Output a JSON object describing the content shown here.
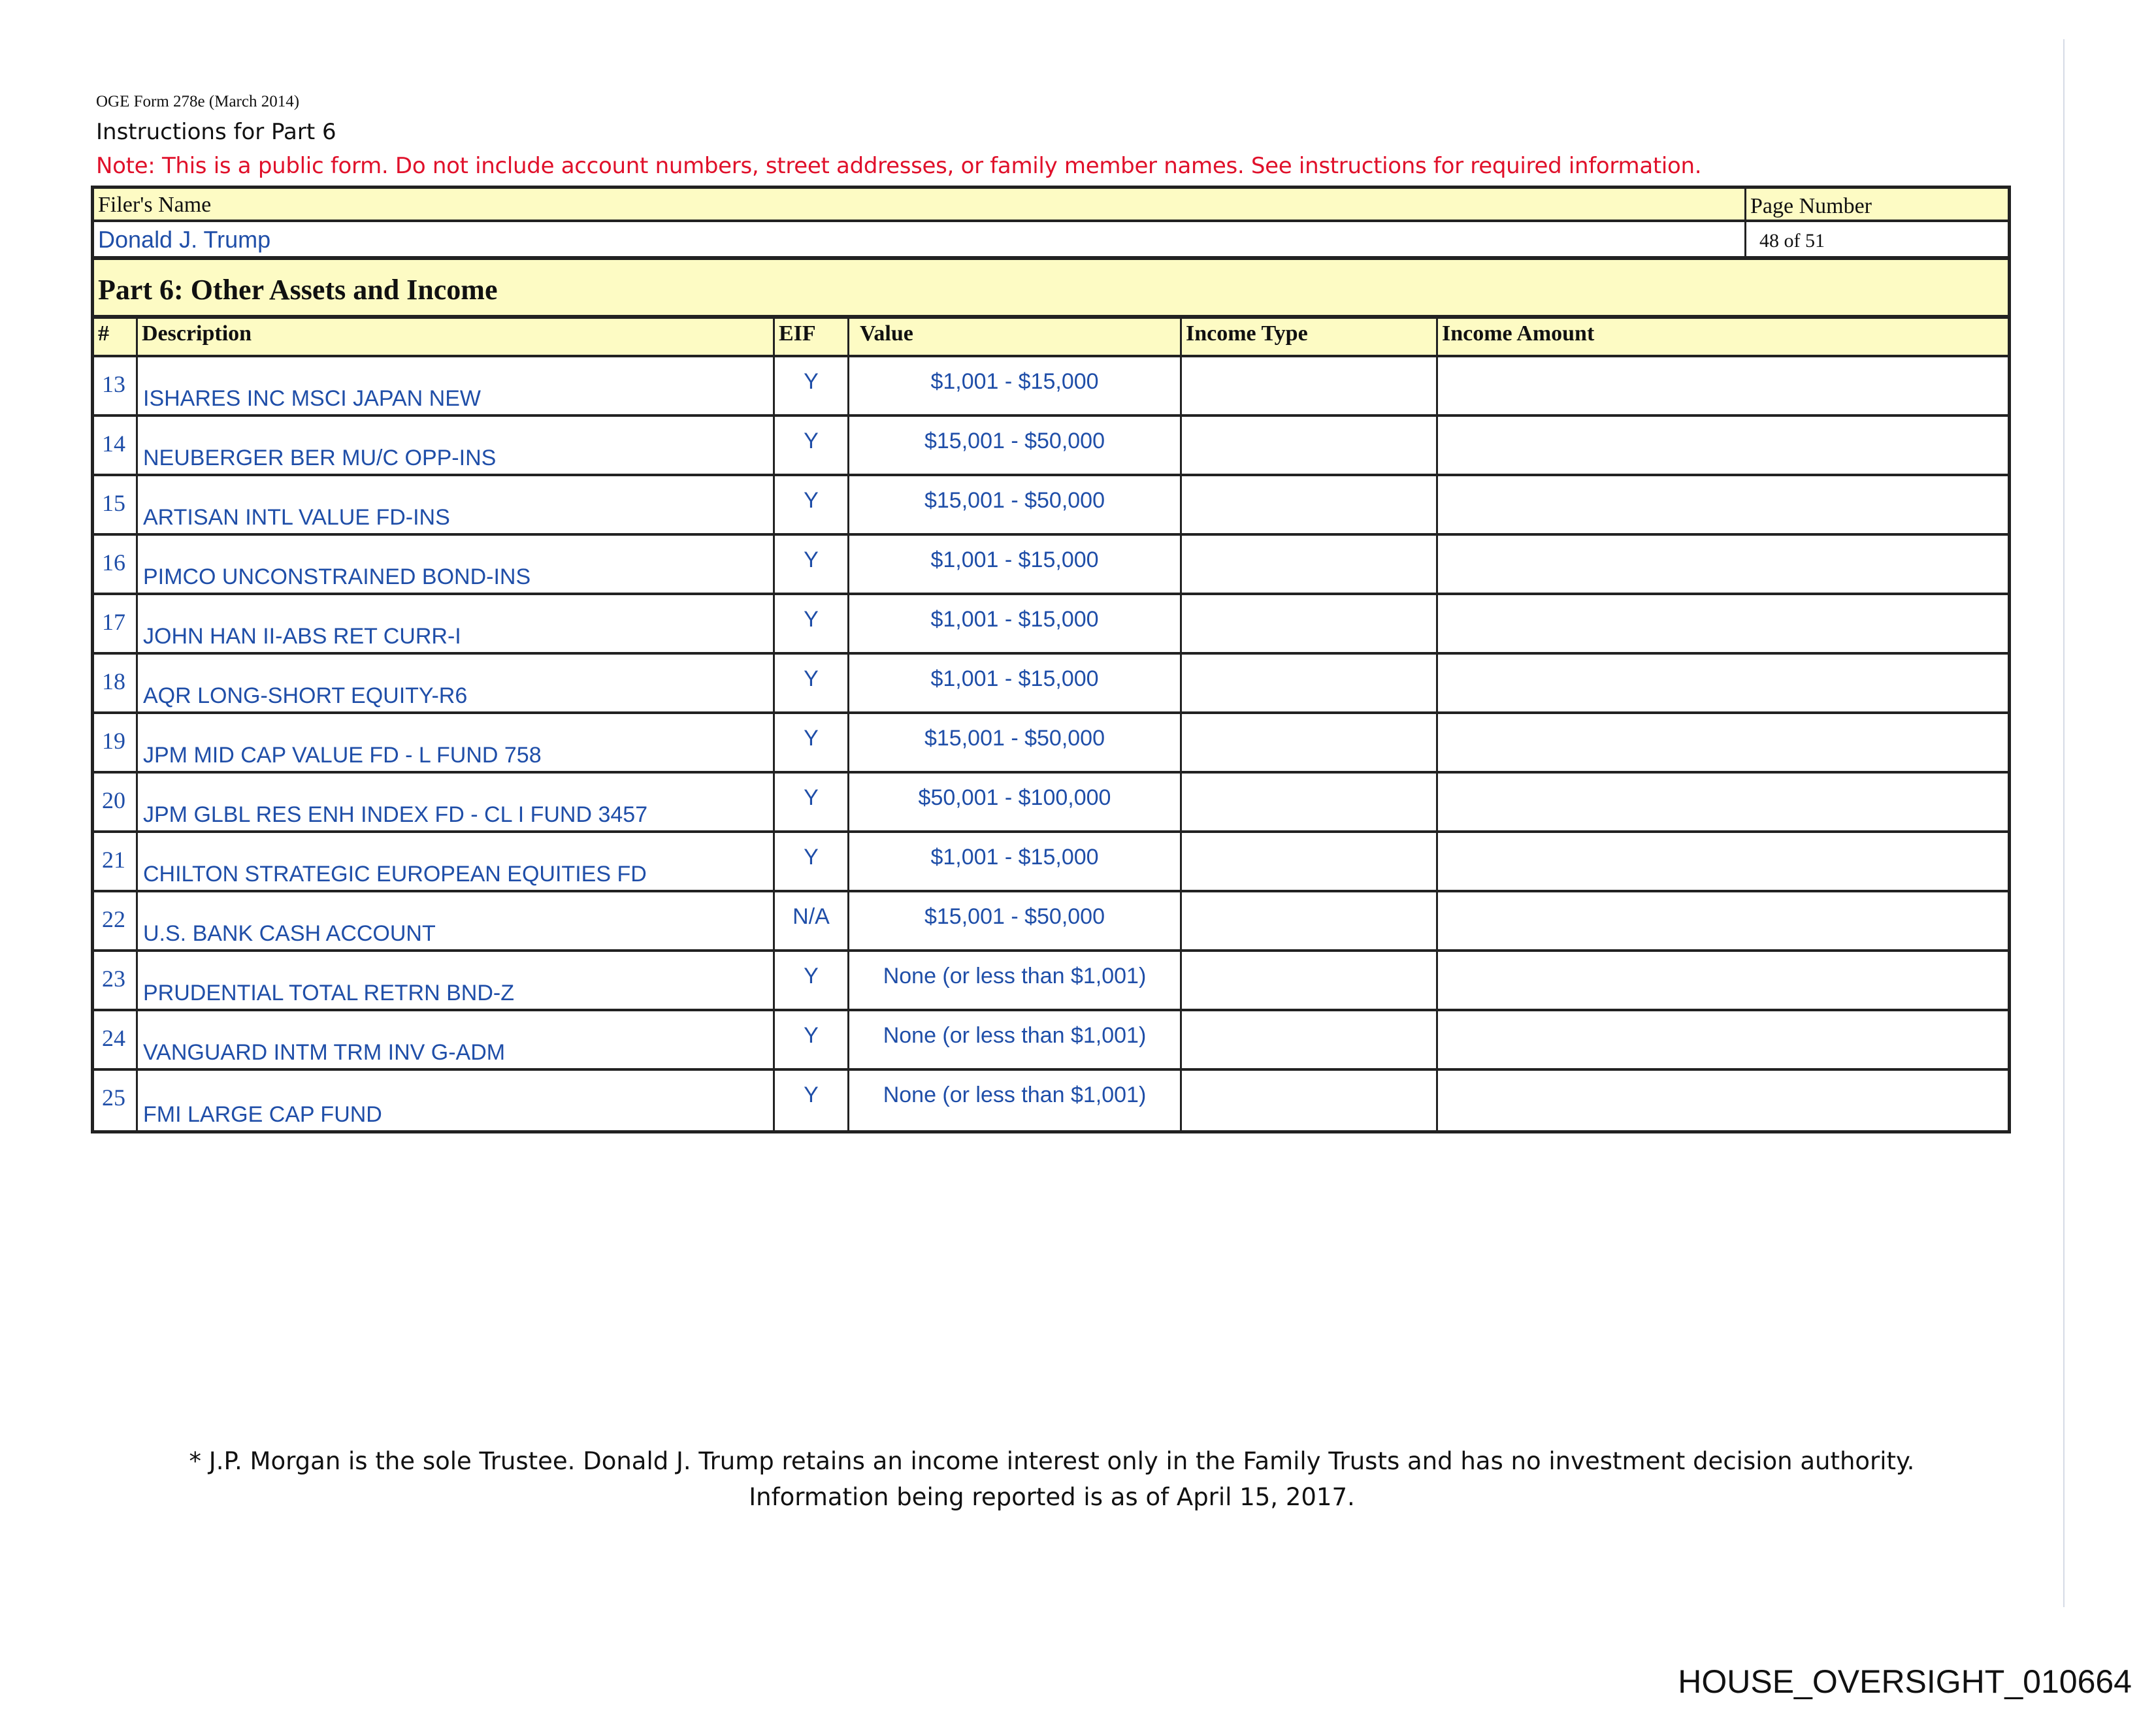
{
  "header": {
    "form_id": "OGE Form 278e (March 2014)",
    "instructions": "Instructions for Part 6",
    "note": "Note: This is a public form. Do not include account numbers, street addresses, or family member names.  See instructions for required information."
  },
  "filer": {
    "name_label": "Filer's Name",
    "name": "Donald J. Trump",
    "page_label": "Page Number",
    "page": "48 of 51"
  },
  "part": {
    "title": "Part 6: Other Assets and Income",
    "columns": [
      "#",
      "Description",
      "EIF",
      "Value",
      "Income Type",
      "Income Amount"
    ],
    "rows": [
      {
        "num": "13",
        "description": "ISHARES INC MSCI JAPAN NEW",
        "eif": "Y",
        "value": "$1,001 - $15,000",
        "income_type": "",
        "income_amount": ""
      },
      {
        "num": "14",
        "description": "NEUBERGER BER MU/C OPP-INS",
        "eif": "Y",
        "value": "$15,001 - $50,000",
        "income_type": "",
        "income_amount": ""
      },
      {
        "num": "15",
        "description": "ARTISAN INTL VALUE FD-INS",
        "eif": "Y",
        "value": "$15,001 - $50,000",
        "income_type": "",
        "income_amount": ""
      },
      {
        "num": "16",
        "description": "PIMCO UNCONSTRAINED BOND-INS",
        "eif": "Y",
        "value": "$1,001 - $15,000",
        "income_type": "",
        "income_amount": ""
      },
      {
        "num": "17",
        "description": "JOHN HAN II-ABS RET CURR-I",
        "eif": "Y",
        "value": "$1,001 - $15,000",
        "income_type": "",
        "income_amount": ""
      },
      {
        "num": "18",
        "description": "AQR LONG-SHORT EQUITY-R6",
        "eif": "Y",
        "value": "$1,001 - $15,000",
        "income_type": "",
        "income_amount": ""
      },
      {
        "num": "19",
        "description": "JPM MID CAP VALUE FD - L FUND 758",
        "eif": "Y",
        "value": "$15,001 - $50,000",
        "income_type": "",
        "income_amount": ""
      },
      {
        "num": "20",
        "description": "JPM GLBL RES ENH INDEX FD - CL I FUND 3457",
        "eif": "Y",
        "value": "$50,001 - $100,000",
        "income_type": "",
        "income_amount": ""
      },
      {
        "num": "21",
        "description": "CHILTON STRATEGIC EUROPEAN EQUITIES FD",
        "eif": "Y",
        "value": "$1,001 - $15,000",
        "income_type": "",
        "income_amount": ""
      },
      {
        "num": "22",
        "description": "U.S. BANK CASH ACCOUNT",
        "eif": "N/A",
        "value": "$15,001 - $50,000",
        "income_type": "",
        "income_amount": ""
      },
      {
        "num": "23",
        "description": "PRUDENTIAL TOTAL RETRN BND-Z",
        "eif": "Y",
        "value": "None (or less than $1,001)",
        "income_type": "",
        "income_amount": ""
      },
      {
        "num": "24",
        "description": "VANGUARD INTM TRM INV G-ADM",
        "eif": "Y",
        "value": "None (or less than $1,001)",
        "income_type": "",
        "income_amount": ""
      },
      {
        "num": "25",
        "description": "FMI LARGE CAP FUND",
        "eif": "Y",
        "value": "None (or less than $1,001)",
        "income_type": "",
        "income_amount": ""
      }
    ]
  },
  "footnote": {
    "line1": "* J.P. Morgan is the sole Trustee. Donald J. Trump retains an income interest only in the Family Trusts and has no investment decision authority.",
    "line2": "Information being reported is as of April 15, 2017."
  },
  "bates": "HOUSE_OVERSIGHT_010664",
  "colors": {
    "entry_text": "#1f4ea8",
    "note": "#e0102a",
    "header_fill": "#fdfbc4"
  }
}
